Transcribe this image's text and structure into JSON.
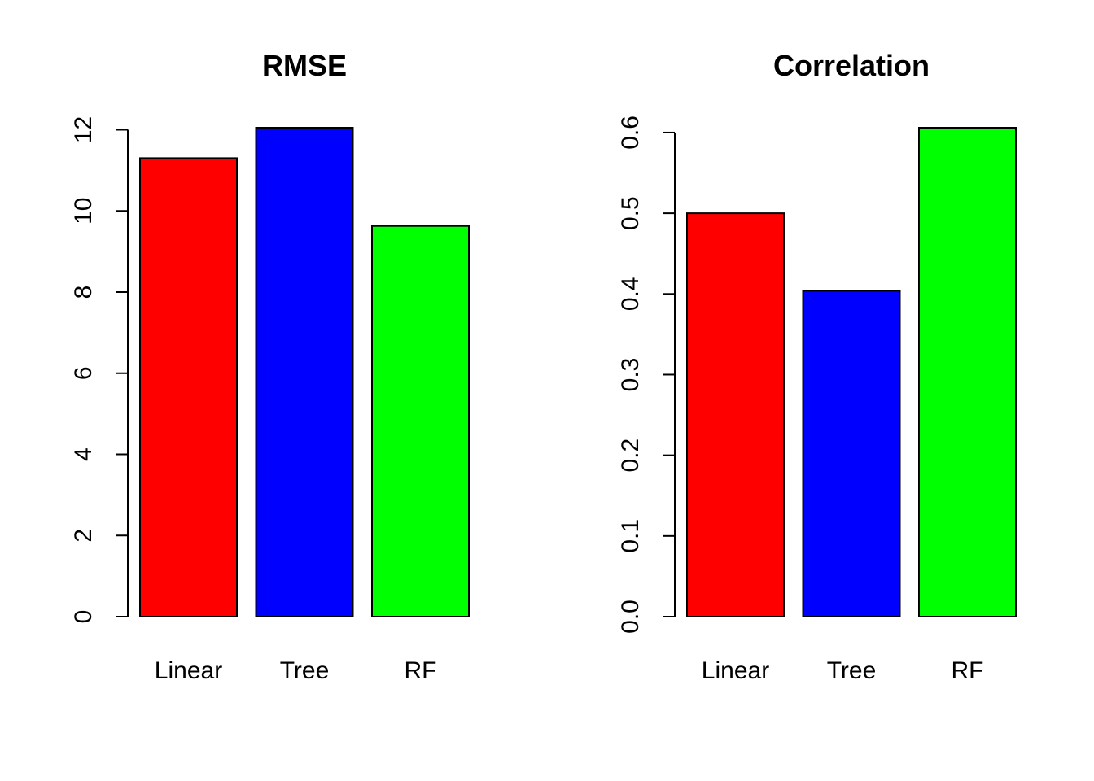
{
  "chart_data": [
    {
      "type": "bar",
      "title": "RMSE",
      "xlabel": "",
      "ylabel": "",
      "categories": [
        "Linear",
        "Tree",
        "RF"
      ],
      "values": [
        11.3,
        12.05,
        9.63
      ],
      "colors": [
        "#ff0000",
        "#0000ff",
        "#00ff00"
      ],
      "ylim": [
        0,
        12.05
      ],
      "yticks": [
        0,
        2,
        4,
        6,
        8,
        10,
        12
      ],
      "ytick_labels": [
        "0",
        "2",
        "4",
        "6",
        "8",
        "10",
        "12"
      ],
      "grid": false
    },
    {
      "type": "bar",
      "title": "Correlation",
      "xlabel": "",
      "ylabel": "",
      "categories": [
        "Linear",
        "Tree",
        "RF"
      ],
      "values": [
        0.5,
        0.404,
        0.606
      ],
      "colors": [
        "#ff0000",
        "#0000ff",
        "#00ff00"
      ],
      "ylim": [
        0,
        0.606
      ],
      "yticks": [
        0,
        0.1,
        0.2,
        0.3,
        0.4,
        0.5,
        0.6
      ],
      "ytick_labels": [
        "0.0",
        "0.1",
        "0.2",
        "0.3",
        "0.4",
        "0.5",
        "0.6"
      ],
      "grid": false
    }
  ]
}
